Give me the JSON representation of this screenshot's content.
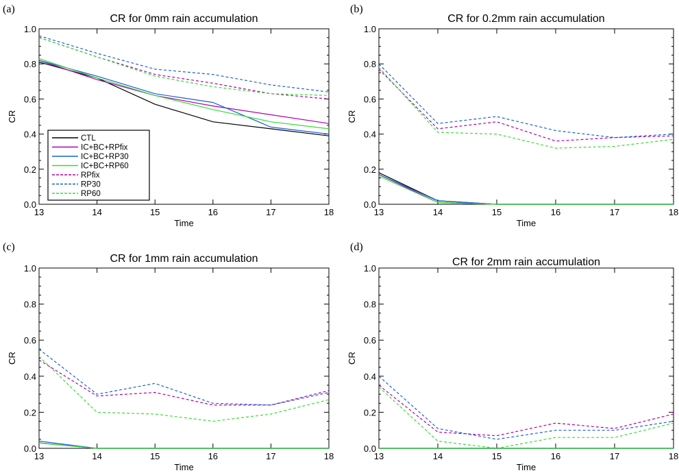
{
  "series_styles": [
    {
      "name": "CTL",
      "color": "#000000",
      "dash": false
    },
    {
      "name": "IC+BC+RPfix",
      "color": "#b000b0",
      "dash": false
    },
    {
      "name": "IC+BC+RP30",
      "color": "#1a5fd6",
      "dash": false
    },
    {
      "name": "IC+BC+RP60",
      "color": "#33dd33",
      "dash": false
    },
    {
      "name": "RPfix",
      "color": "#b000b0",
      "dash": true
    },
    {
      "name": "RP30",
      "color": "#1a5fd6",
      "dash": true
    },
    {
      "name": "RP60",
      "color": "#33dd33",
      "dash": true
    }
  ],
  "chart_data": [
    {
      "panel_label": "(a)",
      "type": "line",
      "title": "CR for 0mm rain accumulation",
      "xlabel": "Time",
      "ylabel": "CR",
      "x": [
        13,
        14,
        15,
        16,
        17,
        18
      ],
      "xlim": [
        13,
        18
      ],
      "ylim": [
        0,
        1
      ],
      "x_ticks": [
        "13",
        "14",
        "15",
        "16",
        "17",
        "18"
      ],
      "y_ticks": [
        "0.0",
        "0.2",
        "0.4",
        "0.6",
        "0.8",
        "1.0"
      ],
      "legend": "bottom-left",
      "legend_entries": [
        "CTL",
        "IC+BC+RPfix",
        "IC+BC+RP30",
        "IC+BC+RP60",
        "RPfix",
        "RP30",
        "RP60"
      ],
      "series": [
        {
          "name": "CTL",
          "values": [
            0.81,
            0.72,
            0.57,
            0.47,
            0.43,
            0.39
          ]
        },
        {
          "name": "IC+BC+RPfix",
          "values": [
            0.82,
            0.71,
            0.62,
            0.56,
            0.51,
            0.46
          ]
        },
        {
          "name": "IC+BC+RP30",
          "values": [
            0.82,
            0.73,
            0.63,
            0.58,
            0.44,
            0.4
          ]
        },
        {
          "name": "IC+BC+RP60",
          "values": [
            0.83,
            0.72,
            0.62,
            0.54,
            0.47,
            0.43
          ]
        },
        {
          "name": "RPfix",
          "values": [
            0.95,
            0.84,
            0.74,
            0.69,
            0.63,
            0.6
          ]
        },
        {
          "name": "RP30",
          "values": [
            0.96,
            0.86,
            0.77,
            0.74,
            0.68,
            0.64
          ]
        },
        {
          "name": "RP60",
          "values": [
            0.95,
            0.84,
            0.73,
            0.67,
            0.63,
            0.62
          ]
        }
      ]
    },
    {
      "panel_label": "(b)",
      "type": "line",
      "title": "CR for 0.2mm rain accumulation",
      "xlabel": "Time",
      "ylabel": "CR",
      "x": [
        13,
        14,
        15,
        16,
        17,
        18
      ],
      "xlim": [
        13,
        18
      ],
      "ylim": [
        0,
        1
      ],
      "x_ticks": [
        "13",
        "14",
        "15",
        "16",
        "17",
        "18"
      ],
      "y_ticks": [
        "0.0",
        "0.2",
        "0.4",
        "0.6",
        "0.8",
        "1.0"
      ],
      "series": [
        {
          "name": "CTL",
          "values": [
            0.18,
            0.02,
            0.0,
            0.0,
            0.0,
            0.0
          ]
        },
        {
          "name": "IC+BC+RPfix",
          "values": [
            0.17,
            0.01,
            0.0,
            0.0,
            0.0,
            0.0
          ]
        },
        {
          "name": "IC+BC+RP30",
          "values": [
            0.17,
            0.02,
            0.0,
            0.0,
            0.0,
            0.0
          ]
        },
        {
          "name": "IC+BC+RP60",
          "values": [
            0.16,
            0.01,
            0.0,
            0.0,
            0.0,
            0.0
          ]
        },
        {
          "name": "RPfix",
          "values": [
            0.77,
            0.43,
            0.47,
            0.36,
            0.38,
            0.39
          ]
        },
        {
          "name": "RP30",
          "values": [
            0.8,
            0.46,
            0.5,
            0.42,
            0.38,
            0.4
          ]
        },
        {
          "name": "RP60",
          "values": [
            0.78,
            0.41,
            0.4,
            0.32,
            0.33,
            0.37
          ]
        }
      ]
    },
    {
      "panel_label": "(c)",
      "type": "line",
      "title": "CR for 1mm rain accumulation",
      "xlabel": "Time",
      "ylabel": "CR",
      "x": [
        13,
        14,
        15,
        16,
        17,
        18
      ],
      "xlim": [
        13,
        18
      ],
      "ylim": [
        0,
        1
      ],
      "x_ticks": [
        "13",
        "14",
        "15",
        "16",
        "17",
        "18"
      ],
      "y_ticks": [
        "0.0",
        "0.2",
        "0.4",
        "0.6",
        "0.8",
        "1.0"
      ],
      "series": [
        {
          "name": "CTL",
          "values": [
            0.03,
            0.0,
            0.0,
            0.0,
            0.0,
            0.0
          ]
        },
        {
          "name": "IC+BC+RPfix",
          "values": [
            0.03,
            0.0,
            0.0,
            0.0,
            0.0,
            0.0
          ]
        },
        {
          "name": "IC+BC+RP30",
          "values": [
            0.04,
            0.0,
            0.0,
            0.0,
            0.0,
            0.0
          ]
        },
        {
          "name": "IC+BC+RP60",
          "values": [
            0.03,
            0.0,
            0.0,
            0.0,
            0.0,
            0.0
          ]
        },
        {
          "name": "RPfix",
          "values": [
            0.49,
            0.29,
            0.31,
            0.24,
            0.24,
            0.32
          ]
        },
        {
          "name": "RP30",
          "values": [
            0.55,
            0.3,
            0.36,
            0.25,
            0.24,
            0.31
          ]
        },
        {
          "name": "RP60",
          "values": [
            0.51,
            0.2,
            0.19,
            0.15,
            0.19,
            0.27
          ]
        }
      ]
    },
    {
      "panel_label": "(d)",
      "type": "line",
      "title": "CR for 2mm rain accumulation",
      "xlabel": "Time",
      "ylabel": "CR",
      "x": [
        13,
        14,
        15,
        16,
        17,
        18
      ],
      "xlim": [
        13,
        18
      ],
      "ylim": [
        0,
        1
      ],
      "x_ticks": [
        "13",
        "14",
        "15",
        "16",
        "17",
        "18"
      ],
      "y_ticks": [
        "0.0",
        "0.2",
        "0.4",
        "0.6",
        "0.8",
        "1.0"
      ],
      "series": [
        {
          "name": "CTL",
          "values": [
            0.0,
            0.0,
            0.0,
            0.0,
            0.0,
            0.0
          ]
        },
        {
          "name": "IC+BC+RPfix",
          "values": [
            0.0,
            0.0,
            0.0,
            0.0,
            0.0,
            0.0
          ]
        },
        {
          "name": "IC+BC+RP30",
          "values": [
            0.0,
            0.0,
            0.0,
            0.0,
            0.0,
            0.0
          ]
        },
        {
          "name": "IC+BC+RP60",
          "values": [
            0.0,
            0.0,
            0.0,
            0.0,
            0.0,
            0.0
          ]
        },
        {
          "name": "RPfix",
          "values": [
            0.35,
            0.09,
            0.07,
            0.14,
            0.11,
            0.19
          ]
        },
        {
          "name": "RP30",
          "values": [
            0.4,
            0.11,
            0.05,
            0.1,
            0.1,
            0.15
          ]
        },
        {
          "name": "RP60",
          "values": [
            0.34,
            0.04,
            0.0,
            0.06,
            0.06,
            0.14
          ]
        }
      ]
    }
  ]
}
